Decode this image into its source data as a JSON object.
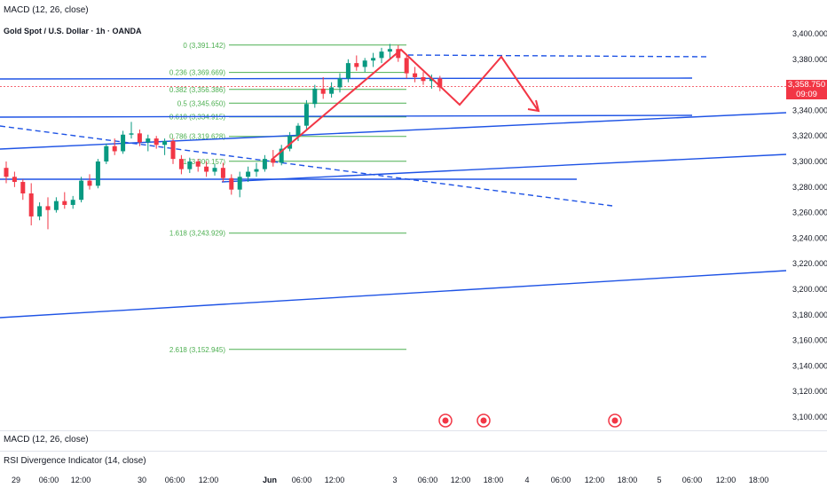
{
  "header": {
    "macd_title": "MACD (12, 26, close)",
    "symbol_title": "Gold Spot / U.S. Dollar · 1h · OANDA"
  },
  "lower_panes": {
    "macd_label": "MACD (12, 26, close)",
    "rsi_label": "RSI Divergence Indicator (14, close)"
  },
  "price_badge": {
    "price": "3,358.750",
    "countdown": "09:09",
    "color": "#f23645"
  },
  "colors": {
    "up": "#089981",
    "down": "#f23645",
    "trend": "#1e53e5",
    "fib": "#4caf50",
    "arrow": "#f23645"
  },
  "chart_data": {
    "type": "candlestick",
    "title": "Gold Spot / U.S. Dollar · 1h · OANDA",
    "ylim": [
      3090,
      3410
    ],
    "y_ticks": [
      "3,400.000",
      "3,380.000",
      "3,360.000",
      "3,340.000",
      "3,320.000",
      "3,300.000",
      "3,280.000",
      "3,260.000",
      "3,240.000",
      "3,220.000",
      "3,200.000",
      "3,180.000",
      "3,160.000",
      "3,140.000",
      "3,120.000",
      "3,100.000"
    ],
    "x_ticks": [
      "29",
      "06:00",
      "12:00",
      "30",
      "06:00",
      "12:00",
      "Jun",
      "06:00",
      "12:00",
      "3",
      "06:00",
      "12:00",
      "18:00",
      "4",
      "06:00",
      "12:00",
      "18:00",
      "5",
      "06:00",
      "12:00",
      "18:00"
    ],
    "fib_levels": [
      {
        "label": "0 (3,391.142)",
        "price": 3391.142
      },
      {
        "label": "0.236 (3,369.669)",
        "price": 3369.669
      },
      {
        "label": "0.382 (3,356.386)",
        "price": 3356.386
      },
      {
        "label": "0.5 (3,345.650)",
        "price": 3345.65
      },
      {
        "label": "0.618 (3,334.915)",
        "price": 3334.915
      },
      {
        "label": "0.786 (3,319.628)",
        "price": 3319.628
      },
      {
        "label": "1 (3,300.157)",
        "price": 3300.157
      },
      {
        "label": "1.618 (3,243.929)",
        "price": 3243.929
      },
      {
        "label": "2.618 (3,152.945)",
        "price": 3152.945
      }
    ],
    "candles": [
      {
        "o": 3295,
        "h": 3300,
        "l": 3283,
        "c": 3288
      },
      {
        "o": 3288,
        "h": 3292,
        "l": 3280,
        "c": 3284
      },
      {
        "o": 3284,
        "h": 3286,
        "l": 3270,
        "c": 3275
      },
      {
        "o": 3275,
        "h": 3283,
        "l": 3250,
        "c": 3257
      },
      {
        "o": 3257,
        "h": 3268,
        "l": 3254,
        "c": 3265
      },
      {
        "o": 3265,
        "h": 3272,
        "l": 3247,
        "c": 3262
      },
      {
        "o": 3262,
        "h": 3272,
        "l": 3260,
        "c": 3269
      },
      {
        "o": 3269,
        "h": 3276,
        "l": 3263,
        "c": 3266
      },
      {
        "o": 3266,
        "h": 3273,
        "l": 3263,
        "c": 3270
      },
      {
        "o": 3270,
        "h": 3288,
        "l": 3268,
        "c": 3285
      },
      {
        "o": 3285,
        "h": 3290,
        "l": 3278,
        "c": 3281
      },
      {
        "o": 3281,
        "h": 3302,
        "l": 3279,
        "c": 3300
      },
      {
        "o": 3300,
        "h": 3314,
        "l": 3298,
        "c": 3312
      },
      {
        "o": 3312,
        "h": 3318,
        "l": 3305,
        "c": 3308
      },
      {
        "o": 3308,
        "h": 3324,
        "l": 3306,
        "c": 3321
      },
      {
        "o": 3321,
        "h": 3331,
        "l": 3318,
        "c": 3322
      },
      {
        "o": 3322,
        "h": 3325,
        "l": 3312,
        "c": 3315
      },
      {
        "o": 3315,
        "h": 3321,
        "l": 3308,
        "c": 3318
      },
      {
        "o": 3318,
        "h": 3320,
        "l": 3310,
        "c": 3313
      },
      {
        "o": 3313,
        "h": 3318,
        "l": 3305,
        "c": 3316
      },
      {
        "o": 3316,
        "h": 3318,
        "l": 3298,
        "c": 3302
      },
      {
        "o": 3302,
        "h": 3305,
        "l": 3290,
        "c": 3294
      },
      {
        "o": 3294,
        "h": 3303,
        "l": 3291,
        "c": 3300
      },
      {
        "o": 3300,
        "h": 3302,
        "l": 3292,
        "c": 3296
      },
      {
        "o": 3296,
        "h": 3300,
        "l": 3288,
        "c": 3292
      },
      {
        "o": 3292,
        "h": 3298,
        "l": 3289,
        "c": 3295
      },
      {
        "o": 3295,
        "h": 3299,
        "l": 3284,
        "c": 3287
      },
      {
        "o": 3287,
        "h": 3290,
        "l": 3274,
        "c": 3278
      },
      {
        "o": 3278,
        "h": 3292,
        "l": 3272,
        "c": 3288
      },
      {
        "o": 3288,
        "h": 3296,
        "l": 3284,
        "c": 3292
      },
      {
        "o": 3292,
        "h": 3299,
        "l": 3288,
        "c": 3294
      },
      {
        "o": 3294,
        "h": 3305,
        "l": 3292,
        "c": 3302
      },
      {
        "o": 3302,
        "h": 3309,
        "l": 3296,
        "c": 3299
      },
      {
        "o": 3299,
        "h": 3313,
        "l": 3297,
        "c": 3310
      },
      {
        "o": 3310,
        "h": 3323,
        "l": 3308,
        "c": 3320
      },
      {
        "o": 3320,
        "h": 3330,
        "l": 3316,
        "c": 3328
      },
      {
        "o": 3328,
        "h": 3348,
        "l": 3325,
        "c": 3345
      },
      {
        "o": 3345,
        "h": 3360,
        "l": 3342,
        "c": 3357
      },
      {
        "o": 3357,
        "h": 3366,
        "l": 3349,
        "c": 3353
      },
      {
        "o": 3353,
        "h": 3362,
        "l": 3350,
        "c": 3358
      },
      {
        "o": 3358,
        "h": 3369,
        "l": 3354,
        "c": 3365
      },
      {
        "o": 3365,
        "h": 3380,
        "l": 3362,
        "c": 3377
      },
      {
        "o": 3377,
        "h": 3383,
        "l": 3371,
        "c": 3374
      },
      {
        "o": 3374,
        "h": 3381,
        "l": 3370,
        "c": 3379
      },
      {
        "o": 3379,
        "h": 3385,
        "l": 3374,
        "c": 3381
      },
      {
        "o": 3381,
        "h": 3389,
        "l": 3377,
        "c": 3386
      },
      {
        "o": 3386,
        "h": 3392,
        "l": 3380,
        "c": 3388
      },
      {
        "o": 3388,
        "h": 3391,
        "l": 3378,
        "c": 3381
      },
      {
        "o": 3381,
        "h": 3384,
        "l": 3365,
        "c": 3369
      },
      {
        "o": 3369,
        "h": 3374,
        "l": 3362,
        "c": 3366
      },
      {
        "o": 3366,
        "h": 3370,
        "l": 3360,
        "c": 3363
      },
      {
        "o": 3363,
        "h": 3368,
        "l": 3357,
        "c": 3365
      },
      {
        "o": 3365,
        "h": 3367,
        "l": 3355,
        "c": 3358
      }
    ]
  }
}
